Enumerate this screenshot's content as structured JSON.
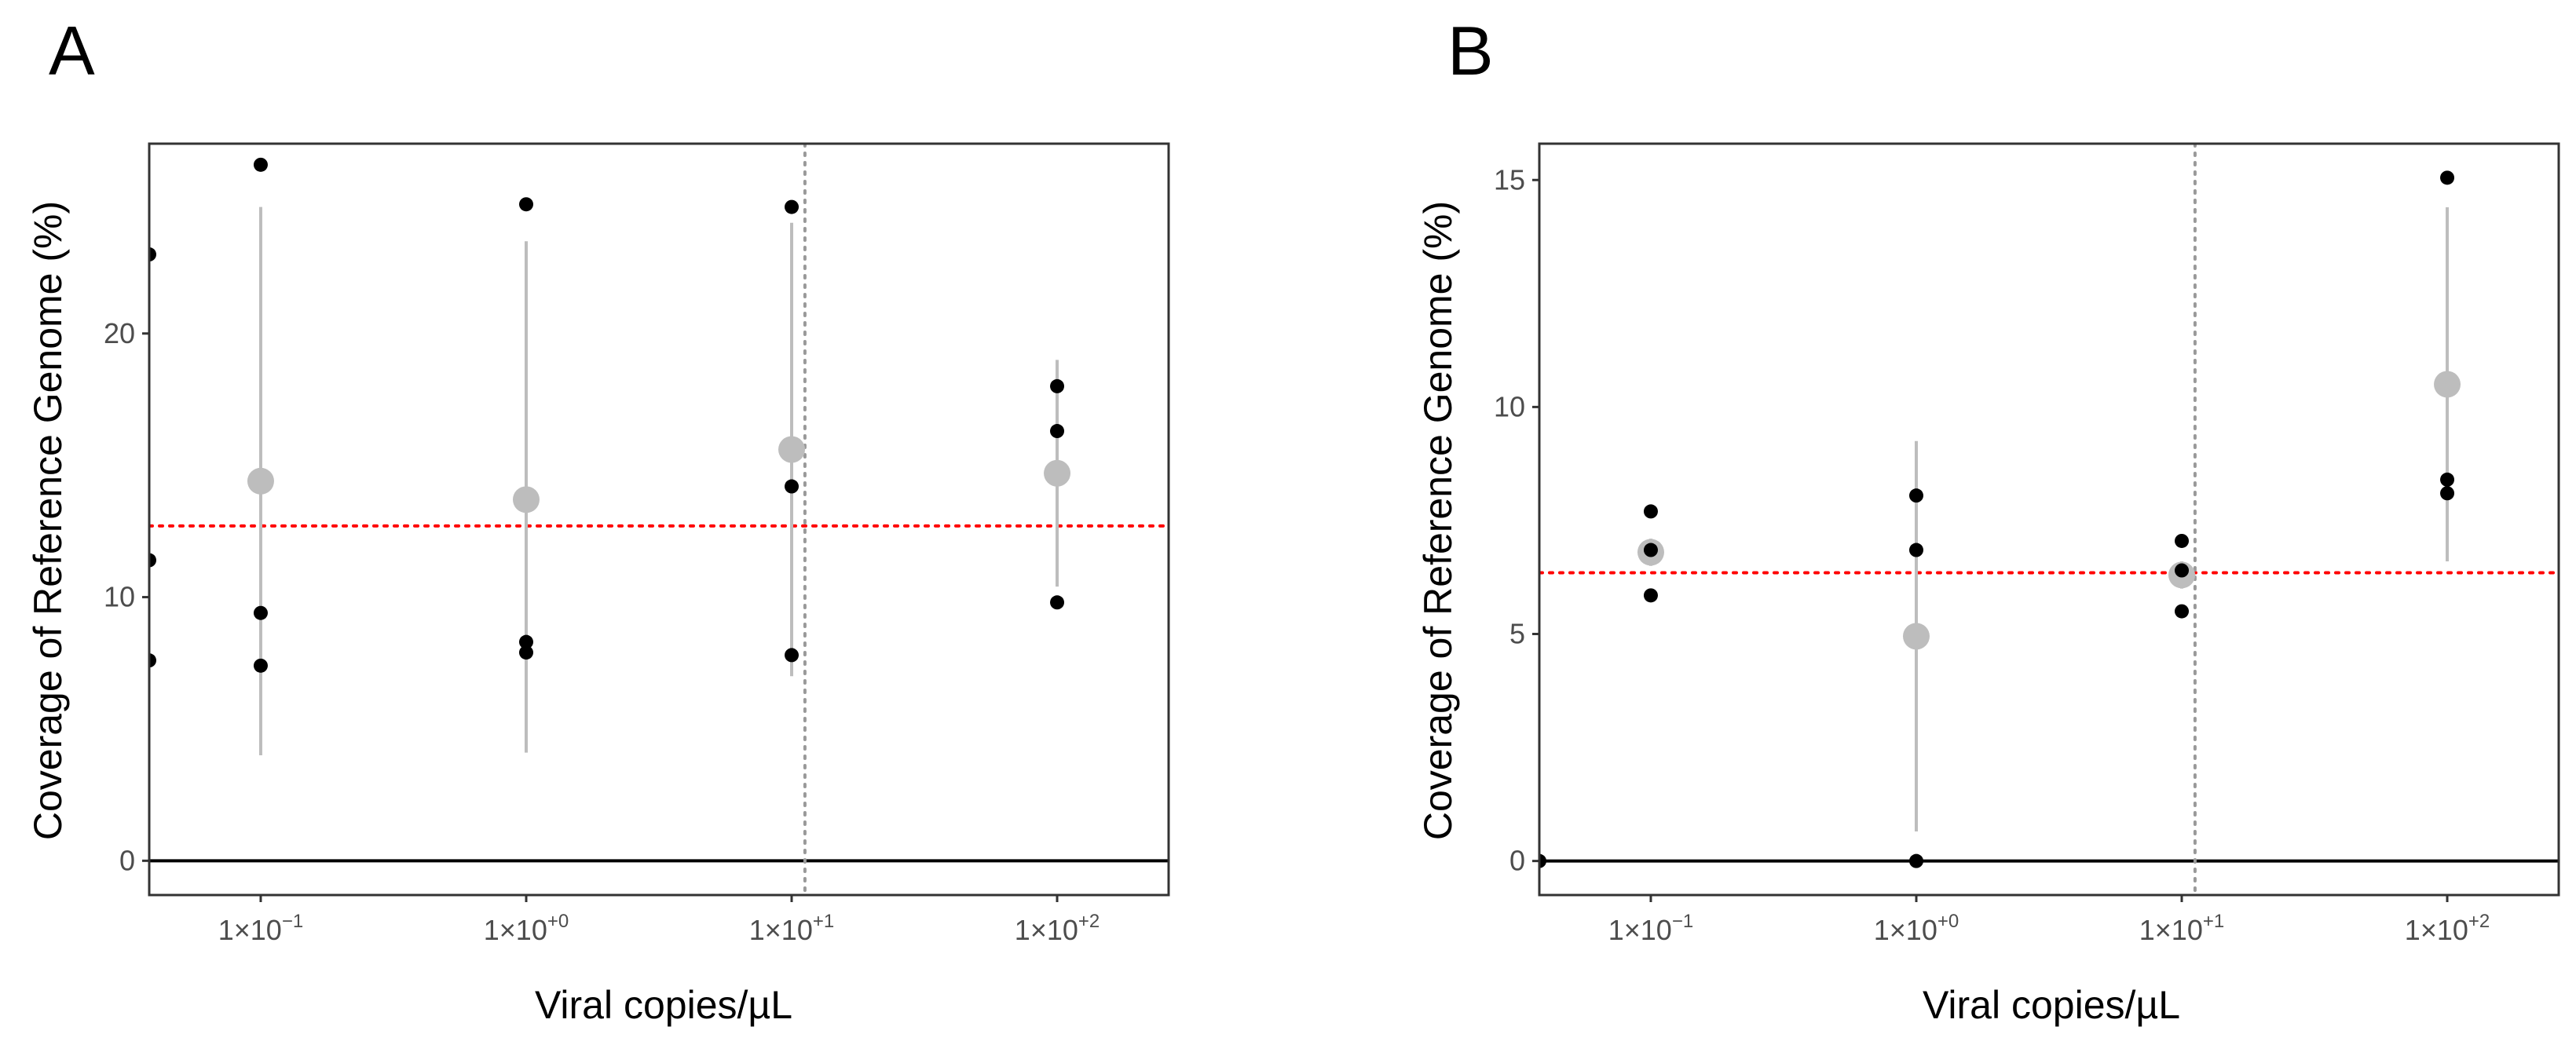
{
  "chart_data": [
    {
      "type": "scatter",
      "panel_label": "A",
      "title": "",
      "xlabel": "Viral copies/µL",
      "ylabel": "Coverage of Reference Genome (%)",
      "x_scale": "log10",
      "xlim_log10": [
        -1.42,
        2.42
      ],
      "ylim": [
        -1.3,
        27.2
      ],
      "y_ticks": [
        0,
        10,
        20
      ],
      "y_tick_labels": [
        "0",
        "10",
        "20"
      ],
      "x_ticks_log10": [
        -1,
        0,
        1,
        2
      ],
      "x_tick_labels": [
        {
          "base": "1×10",
          "exp": "−1"
        },
        {
          "base": "1×10",
          "exp": "+0"
        },
        {
          "base": "1×10",
          "exp": "+1"
        },
        {
          "base": "1×10",
          "exp": "+2"
        }
      ],
      "zero_line": 0,
      "reference_line_y": 12.7,
      "vertical_line_x_log10": 1.05,
      "colors": {
        "points": "#000000",
        "summary": "#bdbdbd",
        "reference": "#ff0000",
        "vertical": "#999999"
      },
      "points": [
        {
          "x": -1.42,
          "y": 23.0
        },
        {
          "x": -1.42,
          "y": 11.4
        },
        {
          "x": -1.42,
          "y": 7.6
        },
        {
          "x": -1,
          "y": 26.4
        },
        {
          "x": -1,
          "y": 9.4
        },
        {
          "x": -1,
          "y": 7.4
        },
        {
          "x": 0,
          "y": 24.9
        },
        {
          "x": 0,
          "y": 8.3
        },
        {
          "x": 0,
          "y": 7.9
        },
        {
          "x": 1,
          "y": 24.8
        },
        {
          "x": 1,
          "y": 14.2
        },
        {
          "x": 1,
          "y": 7.8
        },
        {
          "x": 2,
          "y": 18.0
        },
        {
          "x": 2,
          "y": 16.3
        },
        {
          "x": 2,
          "y": 9.8
        }
      ],
      "summary": [
        {
          "x": -1,
          "mean": 14.4,
          "low": 4.0,
          "high": 24.8
        },
        {
          "x": 0,
          "mean": 13.7,
          "low": 4.1,
          "high": 23.5
        },
        {
          "x": 1,
          "mean": 15.6,
          "low": 7.0,
          "high": 24.2
        },
        {
          "x": 2,
          "mean": 14.7,
          "low": 10.4,
          "high": 19.0
        }
      ]
    },
    {
      "type": "scatter",
      "panel_label": "B",
      "title": "",
      "xlabel": "Viral copies/µL",
      "ylabel": "Coverage of Reference Genome (%)",
      "x_scale": "log10",
      "xlim_log10": [
        -1.42,
        2.42
      ],
      "ylim": [
        -0.75,
        15.8
      ],
      "y_ticks": [
        0,
        5,
        10,
        15
      ],
      "y_tick_labels": [
        "0",
        "5",
        "10",
        "15"
      ],
      "x_ticks_log10": [
        -1,
        0,
        1,
        2
      ],
      "x_tick_labels": [
        {
          "base": "1×10",
          "exp": "−1"
        },
        {
          "base": "1×10",
          "exp": "+0"
        },
        {
          "base": "1×10",
          "exp": "+1"
        },
        {
          "base": "1×10",
          "exp": "+2"
        }
      ],
      "zero_line": 0,
      "reference_line_y": 6.35,
      "vertical_line_x_log10": 1.05,
      "colors": {
        "points": "#000000",
        "summary": "#bdbdbd",
        "reference": "#ff0000",
        "vertical": "#999999"
      },
      "points": [
        {
          "x": -1.42,
          "y": 0.0
        },
        {
          "x": -1,
          "y": 7.7
        },
        {
          "x": -1,
          "y": 6.85
        },
        {
          "x": -1,
          "y": 5.85
        },
        {
          "x": 0,
          "y": 8.05
        },
        {
          "x": 0,
          "y": 6.85
        },
        {
          "x": 0,
          "y": 0.0
        },
        {
          "x": 1,
          "y": 7.05
        },
        {
          "x": 1,
          "y": 6.4
        },
        {
          "x": 1,
          "y": 5.5
        },
        {
          "x": 2,
          "y": 15.05
        },
        {
          "x": 2,
          "y": 8.4
        },
        {
          "x": 2,
          "y": 8.1
        }
      ],
      "summary": [
        {
          "x": -1,
          "mean": 6.8,
          "low": 6.5,
          "high": 7.1
        },
        {
          "x": 0,
          "mean": 4.95,
          "low": 0.65,
          "high": 9.25
        },
        {
          "x": 1,
          "mean": 6.3,
          "low": 6.0,
          "high": 6.6
        },
        {
          "x": 2,
          "mean": 10.5,
          "low": 6.6,
          "high": 14.4
        }
      ]
    }
  ]
}
